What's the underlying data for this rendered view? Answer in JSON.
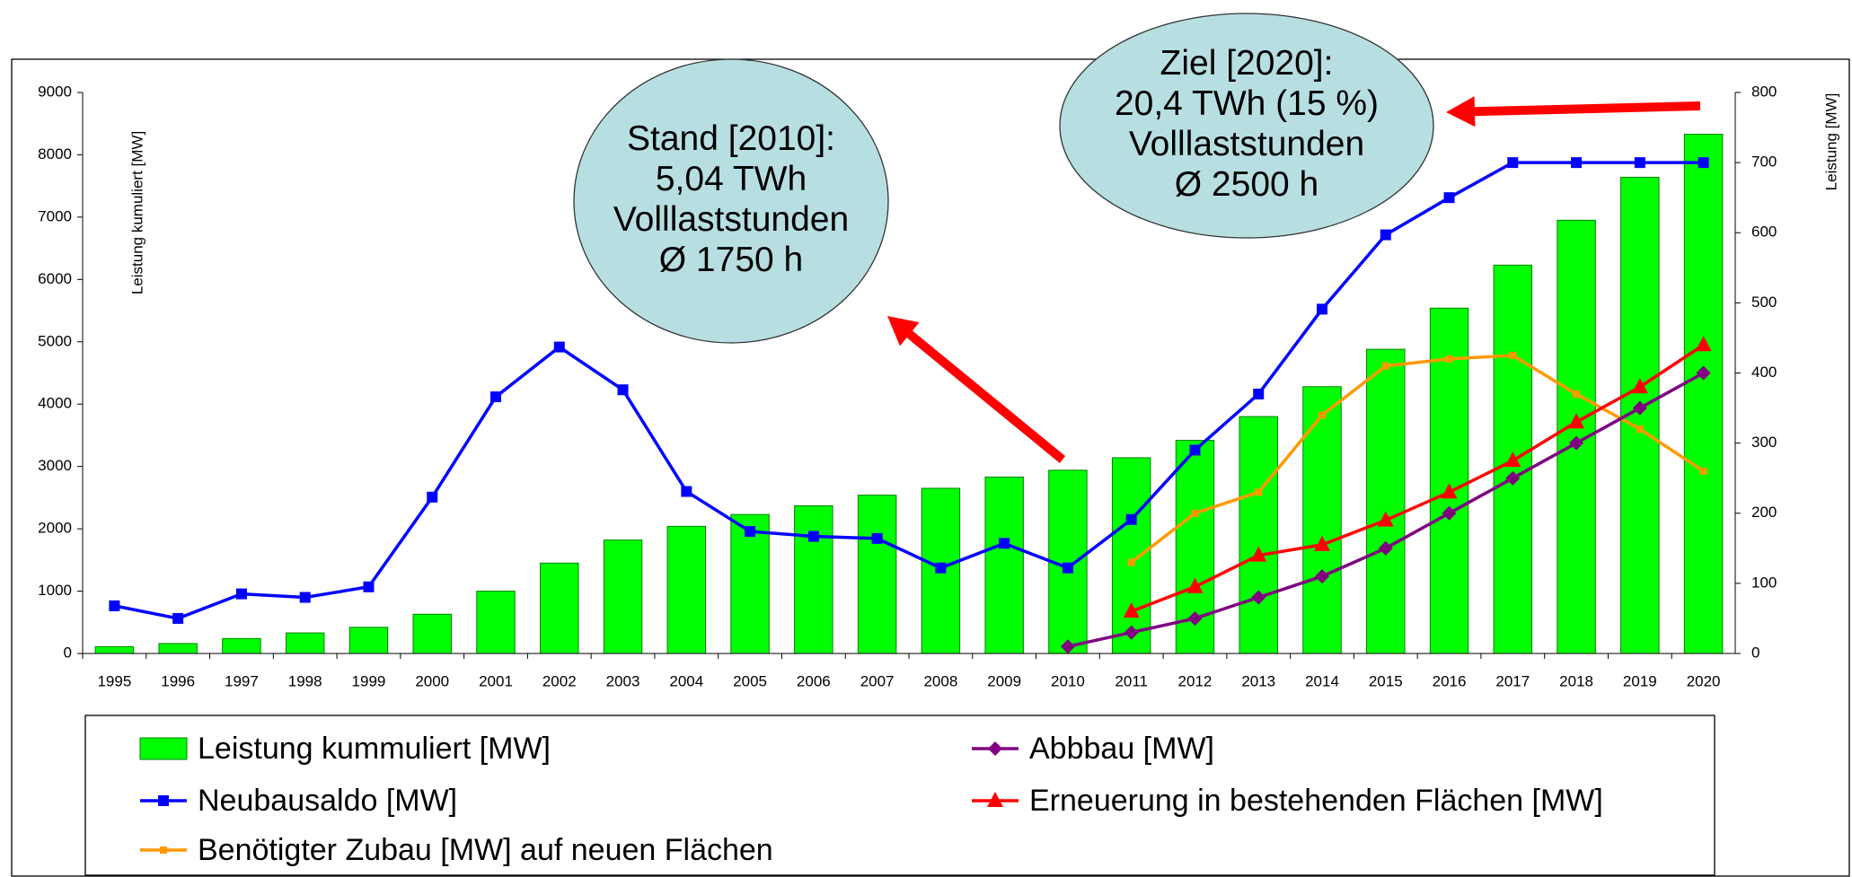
{
  "chart_data": {
    "type": "bar-line",
    "y_label": "Leistung kumuliert [MW]",
    "y2_label": "Leistung  [MW]",
    "categories": [
      "1995",
      "1996",
      "1997",
      "1998",
      "1999",
      "2000",
      "2001",
      "2002",
      "2003",
      "2004",
      "2005",
      "2006",
      "2007",
      "2008",
      "2009",
      "2010",
      "2011",
      "2012",
      "2013",
      "2014",
      "2015",
      "2016",
      "2017",
      "2018",
      "2019",
      "2020"
    ],
    "ylim": [
      0,
      9000
    ],
    "yticks": [
      0,
      1000,
      2000,
      3000,
      4000,
      5000,
      6000,
      7000,
      8000,
      9000
    ],
    "y2lim": [
      0,
      800
    ],
    "y2ticks": [
      0,
      100,
      200,
      300,
      400,
      500,
      600,
      700,
      800
    ],
    "series": [
      {
        "name": "Leistung kummuliert [MW]",
        "type": "bar",
        "color": "#00ff00",
        "values": [
          110,
          160,
          240,
          330,
          420,
          630,
          1000,
          1450,
          1820,
          2040,
          2230,
          2370,
          2540,
          2650,
          2830,
          2940,
          3140,
          3420,
          3800,
          4280,
          4880,
          5540,
          6230,
          6950,
          7640,
          8330
        ]
      },
      {
        "name": "Neubausaldo [MW]",
        "type": "line",
        "axis": "y2",
        "marker": "square",
        "color": "#0000ff",
        "values": [
          68,
          50,
          85,
          80,
          95,
          223,
          366,
          437,
          376,
          231,
          174,
          167,
          164,
          122,
          157,
          122,
          191,
          290,
          370,
          491,
          597,
          650,
          700,
          700,
          700,
          700
        ]
      },
      {
        "name": "Benötigter Zubau [MW] auf neuen Flächen",
        "type": "line",
        "axis": "y2",
        "marker": "small-square",
        "color": "#ff9900",
        "values": [
          null,
          null,
          null,
          null,
          null,
          null,
          null,
          null,
          null,
          null,
          null,
          null,
          null,
          null,
          null,
          null,
          130,
          200,
          230,
          340,
          410,
          420,
          425,
          370,
          320,
          260
        ]
      },
      {
        "name": "Abbbau [MW]",
        "type": "line",
        "axis": "y2",
        "marker": "diamond",
        "color": "#800080",
        "values": [
          null,
          null,
          null,
          null,
          null,
          null,
          null,
          null,
          null,
          null,
          null,
          null,
          null,
          null,
          null,
          10,
          30,
          50,
          80,
          110,
          150,
          200,
          250,
          300,
          350,
          400
        ]
      },
      {
        "name": "Erneuerung in bestehenden Flächen [MW]",
        "type": "line",
        "axis": "y2",
        "marker": "triangle",
        "color": "#ff0000",
        "values": [
          null,
          null,
          null,
          null,
          null,
          null,
          null,
          null,
          null,
          null,
          null,
          null,
          null,
          null,
          null,
          null,
          60,
          95,
          140,
          155,
          190,
          230,
          275,
          330,
          380,
          440
        ]
      }
    ],
    "annotations": [
      {
        "lines": [
          "Stand [2010]:",
          "5,04 TWh",
          "Volllaststunden",
          "Ø 1750 h"
        ]
      },
      {
        "lines": [
          "Ziel [2020]:",
          "20,4 TWh (15 %)",
          "Volllaststunden",
          "Ø 2500 h"
        ]
      }
    ]
  }
}
